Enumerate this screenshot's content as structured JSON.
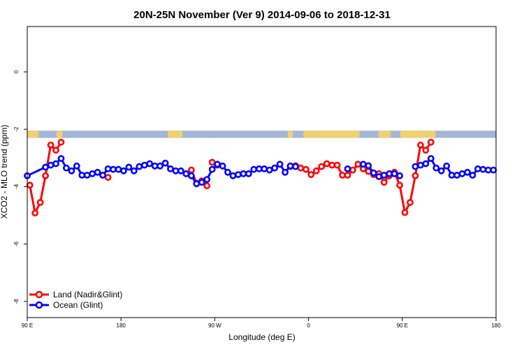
{
  "chart_data": {
    "type": "line",
    "title": "20N-25N November (Ver 9)   2014-09-06 to 2018-12-31",
    "xlabel": "Longitude (deg E)",
    "ylabel": "XCO2 - MLO trend (ppm)",
    "xlim": [
      90,
      540
    ],
    "ylim": [
      -8.6,
      1.6
    ],
    "x_ticks": [
      {
        "value": 90,
        "label": "90 E"
      },
      {
        "value": 180,
        "label": "180"
      },
      {
        "value": 270,
        "label": "90 W"
      },
      {
        "value": 360,
        "label": "0"
      },
      {
        "value": 450,
        "label": "90 E"
      },
      {
        "value": 540,
        "label": "180"
      }
    ],
    "y_ticks": [
      {
        "value": 0,
        "label": "0"
      },
      {
        "value": -2,
        "label": "-2"
      },
      {
        "value": -4,
        "label": "-4"
      },
      {
        "value": -6,
        "label": "-6"
      },
      {
        "value": -8,
        "label": "-8"
      }
    ],
    "map_band": {
      "ylow": -2.3,
      "yhigh": -2.05,
      "ocean_color": "#a3b6d6",
      "land_color": "#f0d070"
    },
    "legend_position": "bottom-left",
    "series": [
      {
        "name": "Land (Nadir&Glint)",
        "color": "#ff0000",
        "segments": [
          [
            [
              92.5,
              -3.95
            ],
            [
              97.5,
              -4.92
            ],
            [
              102.5,
              -4.55
            ],
            [
              107.5,
              -3.62
            ],
            [
              112.5,
              -2.55
            ],
            [
              117.5,
              -2.73
            ],
            [
              122.5,
              -2.45
            ]
          ],
          [
            [
              167.5,
              -3.68
            ]
          ],
          [
            [
              247.5,
              -3.42
            ],
            [
              252.5,
              -3.88
            ],
            [
              257.5,
              -3.8
            ],
            [
              262.5,
              -3.97
            ]
          ],
          [
            [
              267.5,
              -3.15
            ],
            [
              272.5,
              -3.25
            ]
          ],
          [
            [
              342.5,
              -3.3
            ],
            [
              347.5,
              -3.27
            ],
            [
              352.5,
              -3.35
            ],
            [
              357.5,
              -3.4
            ],
            [
              362.5,
              -3.58
            ],
            [
              367.5,
              -3.45
            ],
            [
              372.5,
              -3.3
            ],
            [
              377.5,
              -3.2
            ],
            [
              382.5,
              -3.25
            ],
            [
              387.5,
              -3.25
            ],
            [
              392.5,
              -3.6
            ],
            [
              397.5,
              -3.6
            ],
            [
              402.5,
              -3.42
            ],
            [
              407.5,
              -3.22
            ],
            [
              412.5,
              -3.38
            ],
            [
              417.5,
              -3.47
            ],
            [
              422.5,
              -3.58
            ],
            [
              427.5,
              -3.55
            ],
            [
              432.5,
              -3.85
            ],
            [
              437.5,
              -3.62
            ],
            [
              442.5,
              -3.5
            ],
            [
              447.5,
              -3.95
            ],
            [
              452.5,
              -4.9
            ],
            [
              457.5,
              -4.55
            ],
            [
              462.5,
              -3.62
            ],
            [
              467.5,
              -2.55
            ],
            [
              472.5,
              -2.73
            ],
            [
              477.5,
              -2.45
            ]
          ]
        ]
      },
      {
        "name": "Ocean (Glint)",
        "color": "#0000ff",
        "segments": [
          [
            [
              90,
              -3.62
            ],
            [
              107.5,
              -3.32
            ],
            [
              112.5,
              -3.25
            ],
            [
              117.5,
              -3.2
            ],
            [
              122.5,
              -3.02
            ],
            [
              127.5,
              -3.35
            ],
            [
              132.5,
              -3.45
            ],
            [
              137.5,
              -3.28
            ],
            [
              142.5,
              -3.6
            ],
            [
              147.5,
              -3.6
            ],
            [
              152.5,
              -3.55
            ],
            [
              157.5,
              -3.5
            ],
            [
              162.5,
              -3.6
            ],
            [
              167.5,
              -3.38
            ],
            [
              172.5,
              -3.4
            ],
            [
              177.5,
              -3.4
            ],
            [
              182.5,
              -3.45
            ],
            [
              187.5,
              -3.32
            ],
            [
              192.5,
              -3.45
            ],
            [
              197.5,
              -3.3
            ],
            [
              202.5,
              -3.25
            ],
            [
              207.5,
              -3.2
            ],
            [
              212.5,
              -3.28
            ],
            [
              217.5,
              -3.28
            ],
            [
              222.5,
              -3.18
            ],
            [
              227.5,
              -3.38
            ],
            [
              232.5,
              -3.45
            ],
            [
              237.5,
              -3.45
            ],
            [
              242.5,
              -3.55
            ],
            [
              247.5,
              -3.62
            ],
            [
              252.5,
              -3.9
            ],
            [
              257.5,
              -3.85
            ],
            [
              262.5,
              -3.75
            ],
            [
              267.5,
              -3.4
            ],
            [
              272.5,
              -3.22
            ],
            [
              277.5,
              -3.28
            ],
            [
              282.5,
              -3.5
            ],
            [
              287.5,
              -3.62
            ],
            [
              292.5,
              -3.58
            ],
            [
              297.5,
              -3.55
            ],
            [
              302.5,
              -3.55
            ],
            [
              307.5,
              -3.4
            ],
            [
              312.5,
              -3.38
            ],
            [
              317.5,
              -3.38
            ],
            [
              322.5,
              -3.42
            ],
            [
              327.5,
              -3.35
            ],
            [
              332.5,
              -3.22
            ],
            [
              337.5,
              -3.5
            ],
            [
              342.5,
              -3.28
            ],
            [
              347.5,
              -3.3
            ]
          ],
          [
            [
              397.5,
              -3.38
            ]
          ],
          [
            [
              412.5,
              -3.22
            ],
            [
              417.5,
              -3.27
            ],
            [
              422.5,
              -3.52
            ],
            [
              427.5,
              -3.65
            ],
            [
              432.5,
              -3.6
            ],
            [
              437.5,
              -3.55
            ],
            [
              442.5,
              -3.55
            ],
            [
              447.5,
              -3.62
            ]
          ],
          [
            [
              462.5,
              -3.3
            ],
            [
              467.5,
              -3.25
            ],
            [
              472.5,
              -3.2
            ],
            [
              477.5,
              -3.02
            ],
            [
              482.5,
              -3.35
            ],
            [
              487.5,
              -3.45
            ],
            [
              492.5,
              -3.28
            ],
            [
              497.5,
              -3.6
            ],
            [
              502.5,
              -3.6
            ],
            [
              507.5,
              -3.55
            ],
            [
              512.5,
              -3.5
            ],
            [
              517.5,
              -3.6
            ],
            [
              522.5,
              -3.38
            ],
            [
              527.5,
              -3.4
            ],
            [
              532.5,
              -3.42
            ],
            [
              537.5,
              -3.42
            ]
          ]
        ]
      }
    ]
  }
}
